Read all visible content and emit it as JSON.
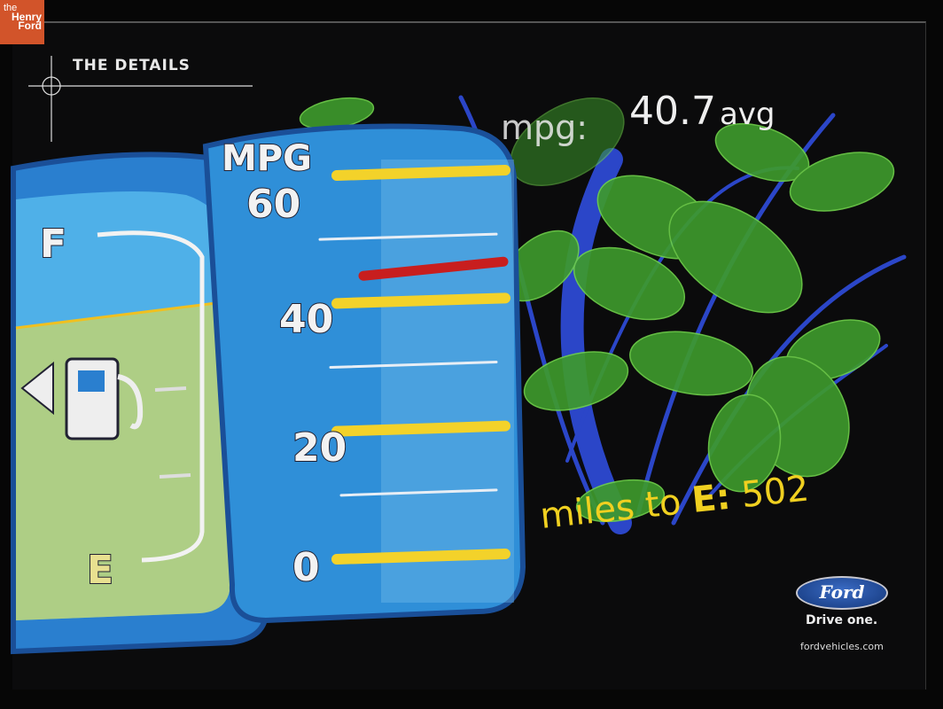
{
  "watermark": {
    "line1": "the",
    "line2": "Henry",
    "line3": "Ford",
    "color": "#d2542a"
  },
  "header": {
    "title": "THE DETAILS"
  },
  "gauge": {
    "unit_label": "MPG",
    "scale_labels": [
      "60",
      "40",
      "20",
      "0"
    ],
    "needle_mpg": 45,
    "fuel_full_label": "F",
    "fuel_empty_label": "E",
    "fuel_level": 0.65,
    "fuel_icon": "fuel-pump-icon",
    "panel_color": "#2f8fd8",
    "needle_color": "#c81e1e",
    "tick_color": "#f3d22a"
  },
  "readout": {
    "mpg_label": "mpg:",
    "mpg_value": "40.7",
    "mpg_suffix": "avg",
    "miles_label": "miles to",
    "miles_e": "E:",
    "miles_value": "502"
  },
  "brand": {
    "logo": "Ford",
    "tagline": "Drive one.",
    "url": "fordvehicles.com"
  }
}
